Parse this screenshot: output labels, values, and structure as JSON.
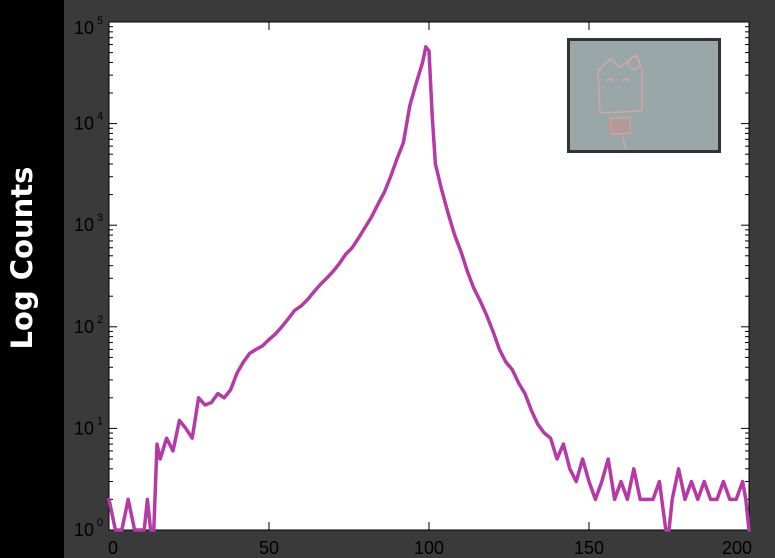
{
  "chart_data": {
    "type": "line",
    "title": "",
    "xlabel": "",
    "ylabel": "Log Counts",
    "yscale": "log",
    "xlim": [
      0,
      200
    ],
    "ylim": [
      1,
      100000
    ],
    "grid": false,
    "x_ticks": [
      "0",
      "50",
      "100",
      "150",
      "200"
    ],
    "y_ticks": [
      {
        "base": "10",
        "exp": "0"
      },
      {
        "base": "10",
        "exp": "1"
      },
      {
        "base": "10",
        "exp": "2"
      },
      {
        "base": "10",
        "exp": "3"
      },
      {
        "base": "10",
        "exp": "4"
      },
      {
        "base": "10",
        "exp": "5"
      }
    ],
    "line_color": "#b53aa6",
    "inset_image": "hello-kitty-photo",
    "series": [
      {
        "x": [
          0,
          2,
          4,
          6,
          8,
          10,
          11,
          12,
          13,
          14,
          15,
          16,
          18,
          20,
          22,
          24,
          26,
          28,
          30,
          32,
          34,
          36,
          38,
          40,
          42,
          44,
          46,
          48,
          50,
          52,
          54,
          56,
          58,
          60,
          62,
          64,
          66,
          68,
          70,
          72,
          74,
          76,
          78,
          80,
          82,
          84,
          86,
          88,
          90,
          92,
          94,
          96,
          98,
          99,
          100,
          101,
          102,
          104,
          106,
          108,
          110,
          112,
          114,
          116,
          118,
          120,
          122,
          124,
          126,
          128,
          130,
          132,
          134,
          136,
          138,
          140,
          142,
          144,
          146,
          148,
          150,
          152,
          154,
          156,
          158,
          160,
          162,
          164,
          166,
          168,
          170,
          172,
          174,
          175,
          176,
          178,
          180,
          182,
          184,
          186,
          188,
          190,
          192,
          194,
          196,
          198,
          199,
          200
        ],
        "values": [
          2,
          1,
          1,
          2,
          1,
          1,
          1,
          2,
          1,
          1,
          7,
          5,
          8,
          6,
          12,
          10,
          8,
          20,
          17,
          18,
          22,
          20,
          24,
          35,
          45,
          55,
          60,
          65,
          75,
          85,
          100,
          120,
          145,
          160,
          185,
          220,
          260,
          300,
          350,
          420,
          520,
          600,
          750,
          950,
          1200,
          1600,
          2100,
          3000,
          4500,
          6500,
          15000,
          25000,
          40000,
          57000,
          52000,
          12000,
          4000,
          2200,
          1300,
          800,
          550,
          350,
          240,
          180,
          130,
          90,
          60,
          45,
          38,
          28,
          22,
          15,
          11,
          9,
          8,
          5,
          7,
          4,
          3,
          5,
          3,
          2,
          3,
          5,
          2,
          3,
          2,
          4,
          2,
          2,
          2,
          3,
          1,
          1,
          2,
          4,
          2,
          3,
          2,
          3,
          2,
          2,
          3,
          2,
          2,
          3,
          2,
          1
        ]
      }
    ]
  }
}
